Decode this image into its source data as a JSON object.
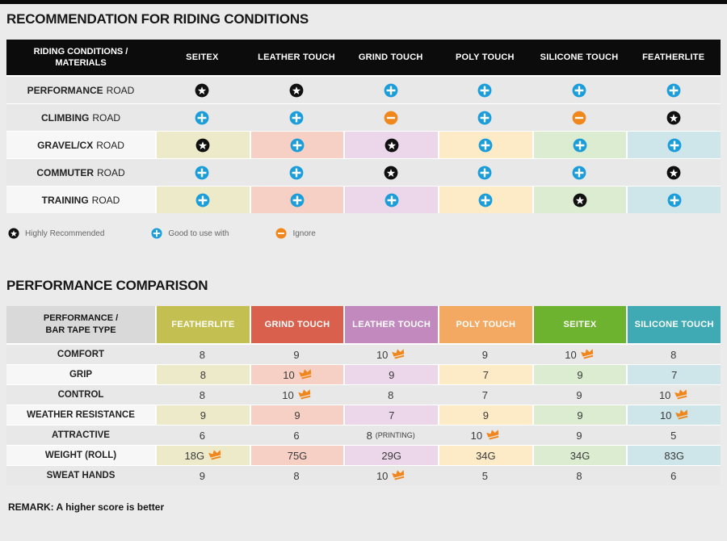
{
  "palette": {
    "page_bg": "#ebebeb",
    "top_bar": "#0c0c0c",
    "header_black": "#0c0c0c",
    "row_gray": "#e8e8e8",
    "row_light": "#f7f7f7",
    "plus_blue": "#1b9dd9",
    "minus_orange": "#f0871d",
    "star_black": "#101010",
    "crown_orange": "#f0871d",
    "table2_label_header_bg": "#d9d9d9"
  },
  "column_tints": [
    "#edeac9",
    "#f7d0c5",
    "#ebd7e9",
    "#fdeac6",
    "#dcecd0",
    "#cee6ea"
  ],
  "section1": {
    "title": "RECOMMENDATION FOR RIDING CONDITIONS",
    "table": {
      "header": {
        "label_line1": "RIDING CONDITIONS /",
        "label_line2": "MATERIALS",
        "columns": [
          "SEITEX",
          "LEATHER TOUCH",
          "GRIND TOUCH",
          "POLY TOUCH",
          "SILICONE TOUCH",
          "FEATHERLITE"
        ]
      },
      "rows": [
        {
          "label_bold": "PERFORMANCE",
          "label_rest": "ROAD",
          "tinted": false,
          "cells": [
            "star",
            "star",
            "plus",
            "plus",
            "plus",
            "plus"
          ]
        },
        {
          "label_bold": "CLIMBING",
          "label_rest": "ROAD",
          "tinted": false,
          "cells": [
            "plus",
            "plus",
            "minus",
            "plus",
            "minus",
            "star"
          ]
        },
        {
          "label_bold": "GRAVEL/CX",
          "label_rest": "ROAD",
          "tinted": true,
          "cells": [
            "star",
            "plus",
            "star",
            "plus",
            "plus",
            "plus"
          ]
        },
        {
          "label_bold": "COMMUTER",
          "label_rest": "ROAD",
          "tinted": false,
          "cells": [
            "plus",
            "plus",
            "star",
            "plus",
            "plus",
            "star"
          ]
        },
        {
          "label_bold": "TRAINING",
          "label_rest": "ROAD",
          "tinted": true,
          "cells": [
            "plus",
            "plus",
            "plus",
            "plus",
            "star",
            "plus"
          ]
        }
      ]
    },
    "legend": [
      {
        "icon": "star",
        "label": "Highly Recommended"
      },
      {
        "icon": "plus",
        "label": "Good to use with"
      },
      {
        "icon": "minus",
        "label": "Ignore"
      }
    ]
  },
  "section2": {
    "title": "PERFORMANCE COMPARISON",
    "table": {
      "header": {
        "label_line1": "PERFORMANCE /",
        "label_line2": "BAR TAPE TYPE",
        "columns": [
          {
            "label": "FEATHERLITE",
            "color": "#c3c051",
            "tint": "#edeac9"
          },
          {
            "label": "GRIND TOUCH",
            "color": "#d8604d",
            "tint": "#f7d0c5"
          },
          {
            "label": "LEATHER TOUCH",
            "color": "#c289bf",
            "tint": "#ebd7e9"
          },
          {
            "label": "POLY TOUCH",
            "color": "#f4a962",
            "tint": "#fdeac6"
          },
          {
            "label": "SEITEX",
            "color": "#6db32f",
            "tint": "#dcecd0"
          },
          {
            "label": "SILICONE TOUCH",
            "color": "#3fa9b4",
            "tint": "#cee6ea"
          }
        ]
      },
      "rows": [
        {
          "label": "COMFORT",
          "tinted": false,
          "cells": [
            {
              "v": "8"
            },
            {
              "v": "9"
            },
            {
              "v": "10",
              "crown": true
            },
            {
              "v": "9"
            },
            {
              "v": "10",
              "crown": true
            },
            {
              "v": "8"
            }
          ]
        },
        {
          "label": "GRIP",
          "tinted": true,
          "cells": [
            {
              "v": "8"
            },
            {
              "v": "10",
              "crown": true
            },
            {
              "v": "9"
            },
            {
              "v": "7"
            },
            {
              "v": "9"
            },
            {
              "v": "7"
            }
          ]
        },
        {
          "label": "CONTROL",
          "tinted": false,
          "cells": [
            {
              "v": "8"
            },
            {
              "v": "10",
              "crown": true
            },
            {
              "v": "8"
            },
            {
              "v": "7"
            },
            {
              "v": "9"
            },
            {
              "v": "10",
              "crown": true
            }
          ]
        },
        {
          "label": "WEATHER RESISTANCE",
          "tinted": true,
          "cells": [
            {
              "v": "9"
            },
            {
              "v": "9"
            },
            {
              "v": "7"
            },
            {
              "v": "9"
            },
            {
              "v": "9"
            },
            {
              "v": "10",
              "crown": true
            }
          ]
        },
        {
          "label": "ATTRACTIVE",
          "tinted": false,
          "cells": [
            {
              "v": "6"
            },
            {
              "v": "6"
            },
            {
              "v": "8",
              "note": "(PRINTING)"
            },
            {
              "v": "10",
              "crown": true
            },
            {
              "v": "9"
            },
            {
              "v": "5"
            }
          ]
        },
        {
          "label": "WEIGHT (ROLL)",
          "tinted": true,
          "cells": [
            {
              "v": "18G",
              "crown": true
            },
            {
              "v": "75G"
            },
            {
              "v": "29G"
            },
            {
              "v": "34G"
            },
            {
              "v": "34G"
            },
            {
              "v": "83G"
            }
          ]
        },
        {
          "label": "SWEAT HANDS",
          "tinted": false,
          "cells": [
            {
              "v": "9"
            },
            {
              "v": "8"
            },
            {
              "v": "10",
              "crown": true
            },
            {
              "v": "5"
            },
            {
              "v": "8"
            },
            {
              "v": "6"
            }
          ]
        }
      ]
    },
    "remark": "REMARK: A higher score is better"
  }
}
